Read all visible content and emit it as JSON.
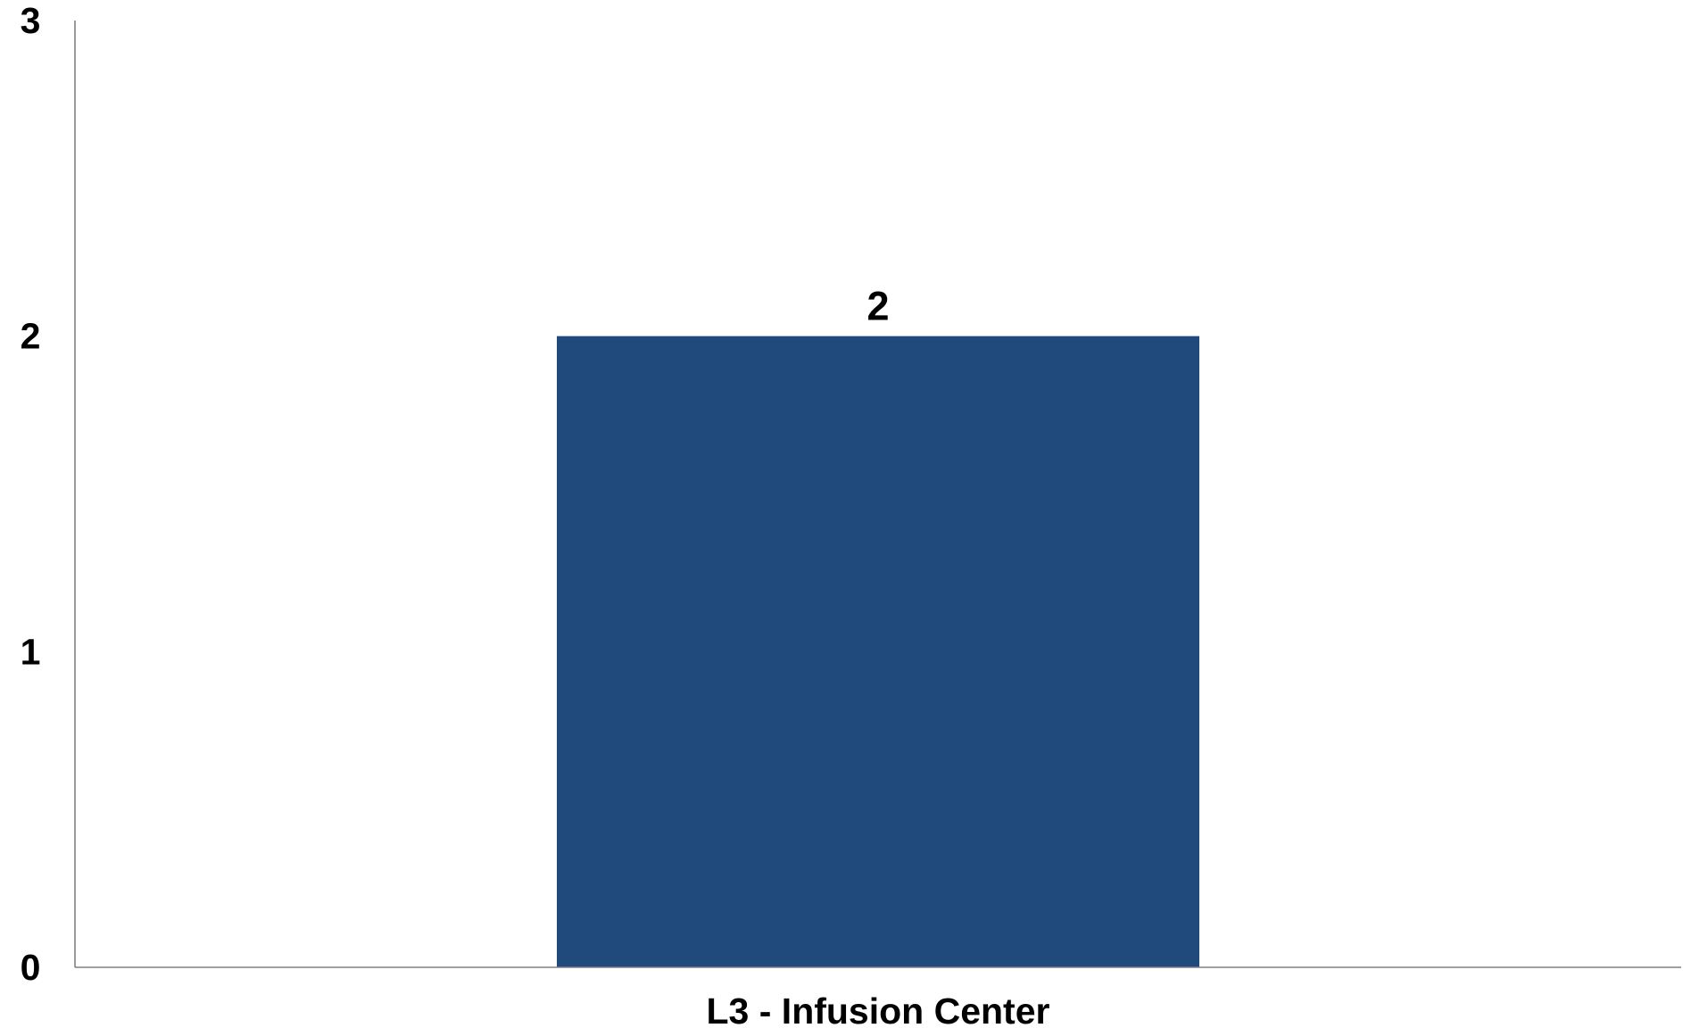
{
  "chart_data": {
    "type": "bar",
    "categories": [
      "L3 - Infusion Center"
    ],
    "values": [
      2
    ],
    "data_labels": [
      "2"
    ],
    "ylim": [
      0,
      3
    ],
    "yticks": [
      0,
      1,
      2,
      3
    ],
    "grid": false,
    "legend": "none",
    "bar_color": "#214a7c"
  }
}
